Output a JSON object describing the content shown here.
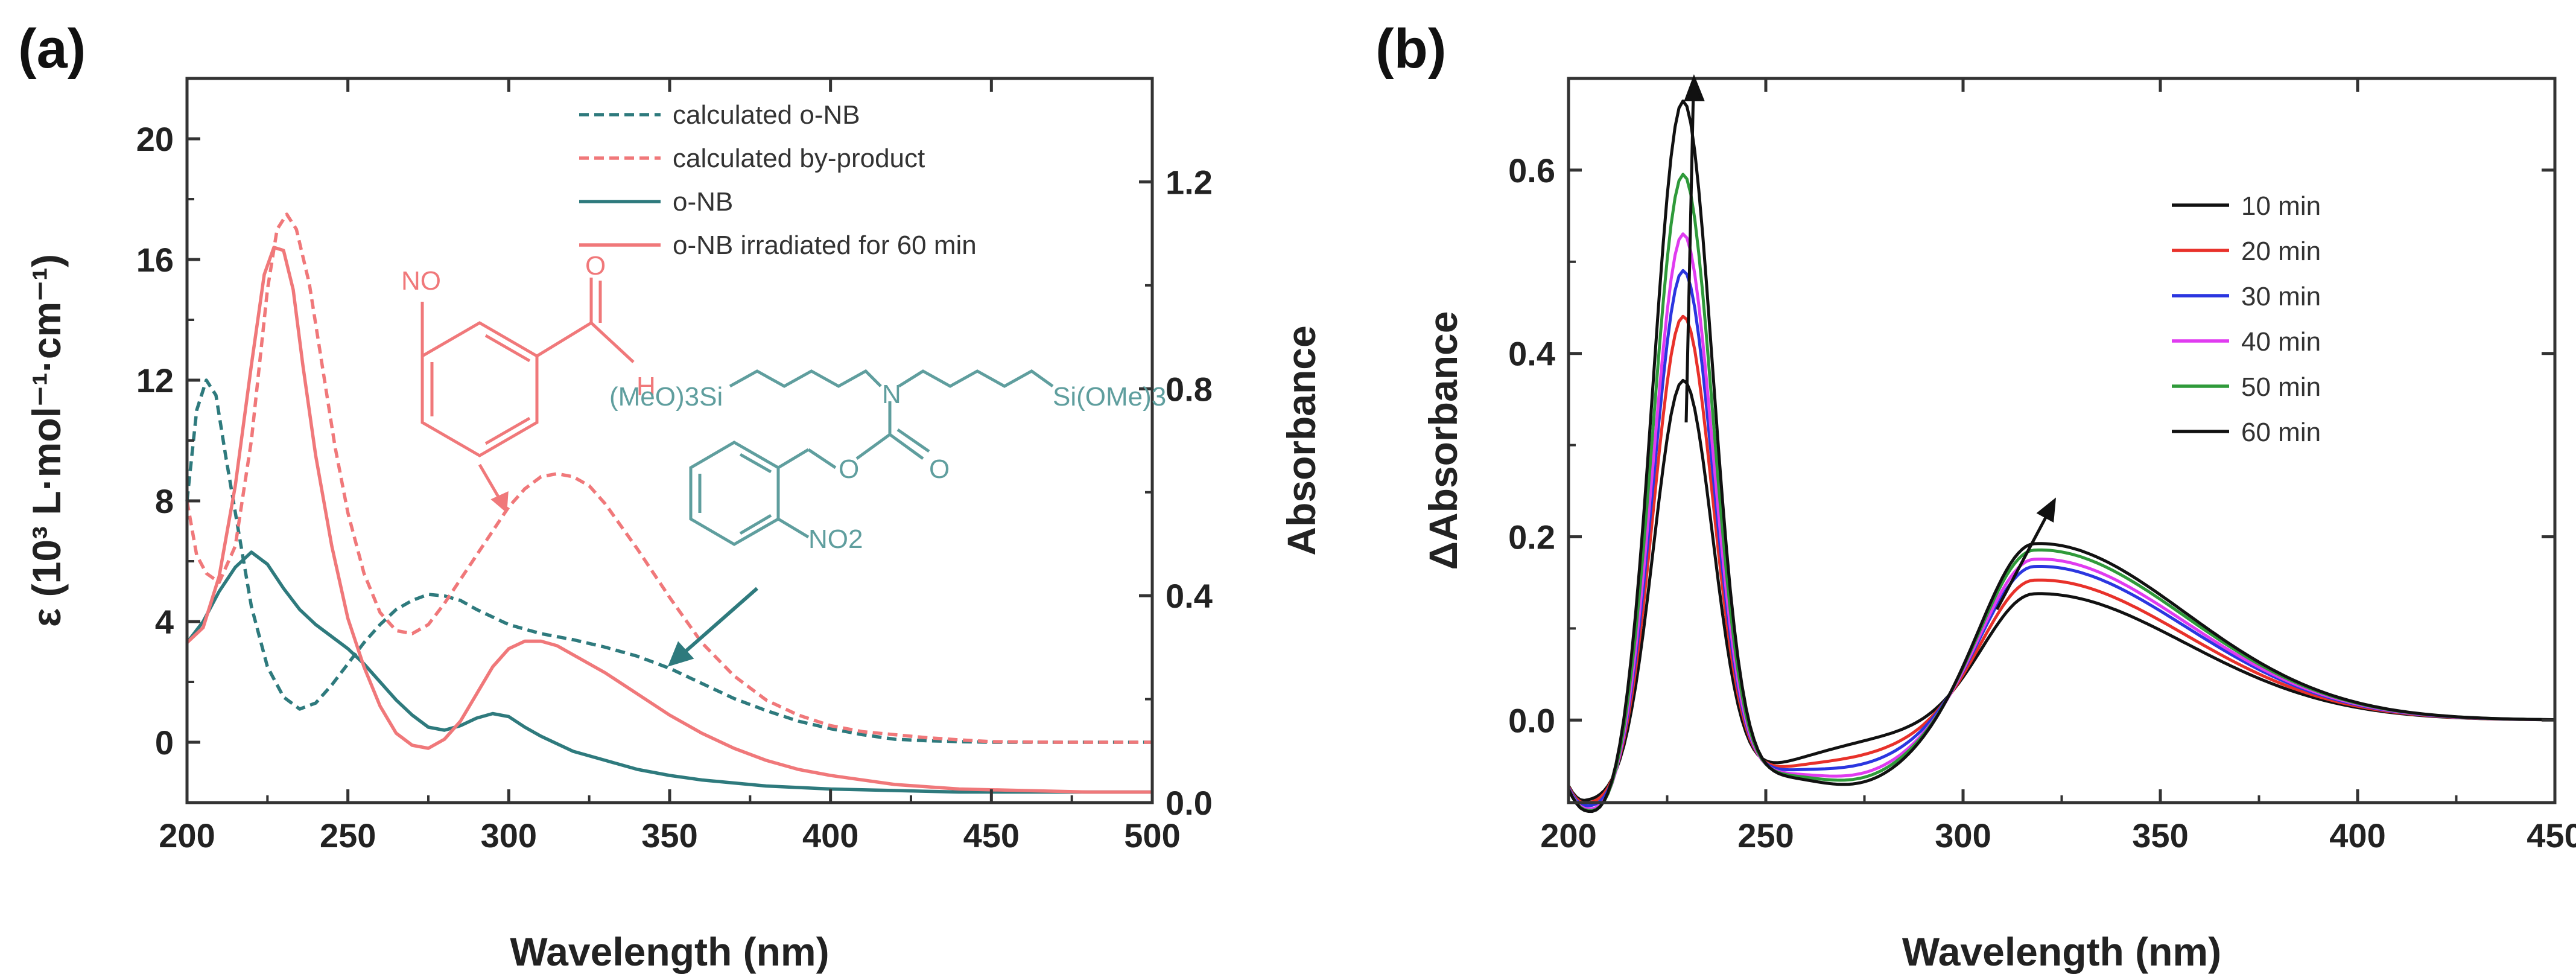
{
  "colors": {
    "teal": "#2e7a7d",
    "salmon": "#f0787a",
    "axis": "#333333",
    "red": "#e8312a",
    "blue": "#2b36e0",
    "magenta": "#e03bf0",
    "green": "#2f9a3a",
    "black": "#111111"
  },
  "panel_a": {
    "label": "(a)",
    "chem": {
      "nitroso": {
        "no": "NO",
        "o": "O",
        "h": "H"
      },
      "onb": {
        "left": "(MeO)3Si",
        "n": "N",
        "right": "Si(OMe)3",
        "o1": "O",
        "o2": "O",
        "no2": "NO2"
      }
    }
  },
  "panel_b": {
    "label": "(b)"
  },
  "chart_data": [
    {
      "type": "line",
      "panel": "(a)",
      "xlabel": "Wavelength (nm)",
      "ylabel": "ε (10³ L·mol⁻¹·cm⁻¹)",
      "y2label": "Absorbance",
      "xlim": [
        200,
        500
      ],
      "ylim": [
        -2,
        22
      ],
      "y2lim": [
        0,
        1.4
      ],
      "xticks": [
        200,
        250,
        300,
        350,
        400,
        450,
        500
      ],
      "yticks": [
        0,
        4,
        8,
        12,
        16,
        20
      ],
      "y2ticks": [
        0.0,
        0.4,
        0.8,
        1.2
      ],
      "legend_position": "top-center",
      "series": [
        {
          "name": "calculated o-NB",
          "axis": "left",
          "style": "dashed",
          "color": "#2e7a7d",
          "x": [
            200,
            203,
            206,
            209,
            212,
            216,
            220,
            225,
            230,
            235,
            240,
            245,
            250,
            255,
            260,
            265,
            270,
            275,
            280,
            285,
            290,
            300,
            310,
            320,
            330,
            340,
            350,
            360,
            370,
            380,
            390,
            400,
            410,
            420,
            430,
            440,
            450,
            460,
            480,
            500
          ],
          "y": [
            8.0,
            11.0,
            12.0,
            11.5,
            9.5,
            7.0,
            4.5,
            2.5,
            1.5,
            1.1,
            1.3,
            1.9,
            2.6,
            3.3,
            3.9,
            4.4,
            4.7,
            4.9,
            4.85,
            4.7,
            4.4,
            3.9,
            3.6,
            3.4,
            3.15,
            2.85,
            2.45,
            1.95,
            1.45,
            1.05,
            0.7,
            0.45,
            0.25,
            0.1,
            0.05,
            0.02,
            0.0,
            0.0,
            0.0,
            0.0
          ]
        },
        {
          "name": "calculated by-product",
          "axis": "left",
          "style": "dashed",
          "color": "#f0787a",
          "x": [
            200,
            203,
            206,
            210,
            215,
            220,
            225,
            228,
            231,
            234,
            238,
            242,
            246,
            250,
            255,
            260,
            265,
            270,
            275,
            280,
            290,
            300,
            305,
            310,
            315,
            320,
            325,
            330,
            340,
            350,
            360,
            370,
            380,
            390,
            400,
            410,
            420,
            430,
            440,
            450,
            470,
            500
          ],
          "y": [
            8.0,
            6.2,
            5.6,
            5.3,
            6.5,
            10.0,
            15.0,
            17.0,
            17.5,
            17.0,
            15.2,
            12.5,
            9.8,
            7.6,
            5.6,
            4.3,
            3.7,
            3.6,
            3.9,
            4.6,
            6.2,
            7.8,
            8.4,
            8.8,
            8.9,
            8.8,
            8.5,
            7.9,
            6.4,
            4.8,
            3.3,
            2.2,
            1.4,
            0.9,
            0.55,
            0.35,
            0.25,
            0.15,
            0.08,
            0.02,
            0.0,
            0.0
          ]
        },
        {
          "name": "o-NB",
          "axis": "left",
          "style": "solid",
          "color": "#2e7a7d",
          "x": [
            200,
            205,
            210,
            215,
            220,
            225,
            230,
            235,
            240,
            245,
            250,
            255,
            260,
            265,
            270,
            275,
            280,
            285,
            290,
            295,
            300,
            305,
            310,
            315,
            320,
            330,
            340,
            350,
            360,
            370,
            380,
            400,
            420,
            440,
            460,
            480,
            500
          ],
          "y": [
            3.3,
            4.0,
            5.0,
            5.8,
            6.3,
            5.9,
            5.1,
            4.4,
            3.9,
            3.5,
            3.1,
            2.6,
            2.0,
            1.4,
            0.9,
            0.5,
            0.4,
            0.55,
            0.8,
            0.95,
            0.85,
            0.5,
            0.2,
            -0.05,
            -0.3,
            -0.6,
            -0.9,
            -1.1,
            -1.25,
            -1.35,
            -1.45,
            -1.55,
            -1.6,
            -1.65,
            -1.65,
            -1.65,
            -1.65
          ]
        },
        {
          "name": "o-NB irradiated for 60 min",
          "axis": "left",
          "style": "solid",
          "color": "#f0787a",
          "x": [
            200,
            205,
            210,
            215,
            220,
            224,
            227,
            230,
            233,
            236,
            240,
            245,
            250,
            255,
            260,
            265,
            270,
            275,
            280,
            285,
            290,
            295,
            300,
            305,
            310,
            315,
            320,
            330,
            340,
            350,
            360,
            370,
            380,
            390,
            400,
            420,
            440,
            460,
            480,
            500
          ],
          "y": [
            3.3,
            3.8,
            5.5,
            8.5,
            12.5,
            15.5,
            16.4,
            16.3,
            15.0,
            12.5,
            9.5,
            6.5,
            4.1,
            2.5,
            1.2,
            0.3,
            -0.1,
            -0.2,
            0.1,
            0.7,
            1.6,
            2.5,
            3.1,
            3.35,
            3.35,
            3.2,
            2.9,
            2.3,
            1.6,
            0.9,
            0.3,
            -0.2,
            -0.6,
            -0.9,
            -1.1,
            -1.4,
            -1.55,
            -1.6,
            -1.65,
            -1.65
          ]
        }
      ],
      "legend": [
        "calculated o-NB",
        "calculated by-product",
        "o-NB",
        "o-NB irradiated for 60 min"
      ]
    },
    {
      "type": "line",
      "panel": "(b)",
      "xlabel": "Wavelength (nm)",
      "ylabel": "ΔAbsorbance",
      "xlim": [
        200,
        450
      ],
      "ylim": [
        -0.09,
        0.7
      ],
      "xticks": [
        200,
        250,
        300,
        350,
        400,
        450
      ],
      "yticks": [
        0.0,
        0.2,
        0.4,
        0.6
      ],
      "legend_position": "top-right",
      "x": [
        200,
        205,
        209,
        213,
        217,
        221,
        225,
        229,
        233,
        237,
        241,
        245,
        250,
        255,
        260,
        265,
        270,
        275,
        280,
        285,
        290,
        295,
        300,
        305,
        310,
        315,
        320,
        325,
        330,
        340,
        350,
        360,
        370,
        380,
        390,
        400,
        410,
        420,
        430,
        440,
        450
      ],
      "peak_x": 229,
      "series": [
        {
          "name": "10 min",
          "color": "#111111",
          "peak": 0.36,
          "band2": 0.14,
          "dip": -0.06,
          "trough": 0.0
        },
        {
          "name": "20 min",
          "color": "#e8312a",
          "peak": 0.43,
          "band2": 0.155,
          "dip": -0.065,
          "trough": -0.015
        },
        {
          "name": "30 min",
          "color": "#2b36e0",
          "peak": 0.48,
          "band2": 0.17,
          "dip": -0.07,
          "trough": -0.025
        },
        {
          "name": "40 min",
          "color": "#e03bf0",
          "peak": 0.52,
          "band2": 0.178,
          "dip": -0.075,
          "trough": -0.035
        },
        {
          "name": "50 min",
          "color": "#2f9a3a",
          "peak": 0.585,
          "band2": 0.188,
          "dip": -0.078,
          "trough": -0.04
        },
        {
          "name": "60 min",
          "color": "#111111",
          "peak": 0.665,
          "band2": 0.195,
          "dip": -0.08,
          "trough": -0.045
        }
      ],
      "legend": [
        "10 min",
        "20 min",
        "30 min",
        "40 min",
        "50 min",
        "60 min"
      ]
    }
  ]
}
